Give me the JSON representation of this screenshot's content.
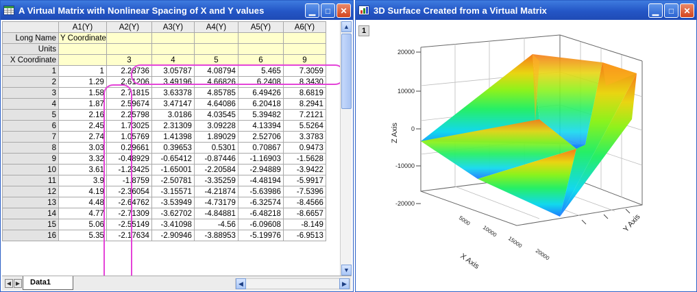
{
  "left_window": {
    "title": "A Virtual Matrix with Nonlinear Spacing of X and Y values",
    "columns": [
      "",
      "A1(Y)",
      "A2(Y)",
      "A3(Y)",
      "A4(Y)",
      "A5(Y)",
      "A6(Y)"
    ],
    "long_name_label": "Long Name",
    "long_name_value": "Y Coordinate",
    "units_label": "Units",
    "xcoord_label": "X Coordinate",
    "xcoord_values": [
      "3",
      "4",
      "5",
      "6",
      "9"
    ],
    "rows": [
      [
        "1",
        "1",
        "2.28736",
        "3.05787",
        "4.08794",
        "5.465",
        "7.3059"
      ],
      [
        "2",
        "1.29",
        "2.61206",
        "3.49196",
        "4.66826",
        "6.2408",
        "8.3430"
      ],
      [
        "3",
        "1.58",
        "2.71815",
        "3.63378",
        "4.85785",
        "6.49426",
        "8.6819"
      ],
      [
        "4",
        "1.87",
        "2.59674",
        "3.47147",
        "4.64086",
        "6.20418",
        "8.2941"
      ],
      [
        "5",
        "2.16",
        "2.25798",
        "3.0186",
        "4.03545",
        "5.39482",
        "7.2121"
      ],
      [
        "6",
        "2.45",
        "1.73025",
        "2.31309",
        "3.09228",
        "4.13394",
        "5.5264"
      ],
      [
        "7",
        "2.74",
        "1.05769",
        "1.41398",
        "1.89029",
        "2.52706",
        "3.3783"
      ],
      [
        "8",
        "3.03",
        "0.29661",
        "0.39653",
        "0.5301",
        "0.70867",
        "0.9473"
      ],
      [
        "9",
        "3.32",
        "-0.48929",
        "-0.65412",
        "-0.87446",
        "-1.16903",
        "-1.5628"
      ],
      [
        "10",
        "3.61",
        "-1.23425",
        "-1.65001",
        "-2.20584",
        "-2.94889",
        "-3.9422"
      ],
      [
        "11",
        "3.9",
        "-1.8759",
        "-2.50781",
        "-3.35259",
        "-4.48194",
        "-5.9917"
      ],
      [
        "12",
        "4.19",
        "-2.36054",
        "-3.15571",
        "-4.21874",
        "-5.63986",
        "-7.5396"
      ],
      [
        "13",
        "4.48",
        "-2.64762",
        "-3.53949",
        "-4.73179",
        "-6.32574",
        "-8.4566"
      ],
      [
        "14",
        "4.77",
        "-2.71309",
        "-3.62702",
        "-4.84881",
        "-6.48218",
        "-8.6657"
      ],
      [
        "15",
        "5.06",
        "-2.55149",
        "-3.41098",
        "-4.56",
        "-6.09608",
        "-8.149"
      ],
      [
        "16",
        "5.35",
        "-2.17634",
        "-2.90946",
        "-3.88953",
        "-5.19976",
        "-6.9513"
      ]
    ],
    "sheet_tab": "Data1"
  },
  "right_window": {
    "title": "3D Surface Created from a Virtual Matrix",
    "layer_number": "1",
    "chart": {
      "z_axis_label": "Z Axis",
      "y_axis_label": "Y Axis",
      "x_axis_label": "X Axis",
      "z_ticks": [
        "20000",
        "10000",
        "0",
        "-10000",
        "-20000"
      ],
      "x_ticks": [
        "5000",
        "10000",
        "15000",
        "20000"
      ],
      "y_ticks": [
        "",
        "",
        ""
      ]
    }
  },
  "colors": {
    "title_bar": "#2456c6",
    "meta_fill": "#ffffcc",
    "highlight": "#e443d8"
  }
}
